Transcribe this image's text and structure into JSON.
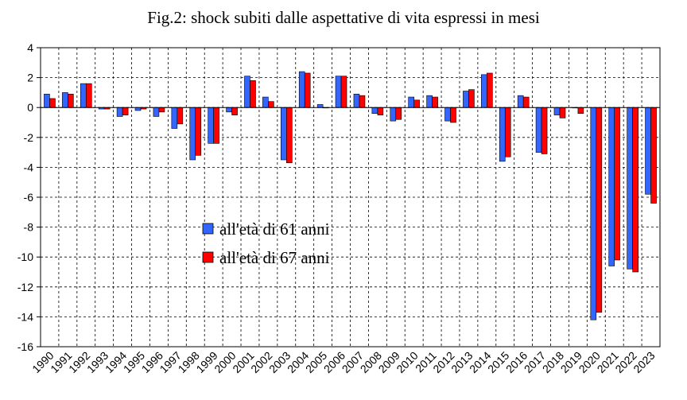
{
  "chart_data": {
    "type": "bar",
    "title": "Fig.2: shock subiti dalle aspettative di vita espressi in mesi",
    "xlabel": "",
    "ylabel": "",
    "ylim": [
      -16,
      4
    ],
    "yticks": [
      4,
      2,
      0,
      -2,
      -4,
      -6,
      -8,
      -10,
      -12,
      -14,
      -16
    ],
    "grid": true,
    "legend_position": "center-left",
    "categories": [
      "1990",
      "1991",
      "1992",
      "1993",
      "1994",
      "1995",
      "1996",
      "1997",
      "1998",
      "1999",
      "2000",
      "2001",
      "2002",
      "2003",
      "2004",
      "2005",
      "2006",
      "2007",
      "2008",
      "2009",
      "2010",
      "2011",
      "2012",
      "2013",
      "2014",
      "2015",
      "2016",
      "2017",
      "2018",
      "2019",
      "2020",
      "2021",
      "2022",
      "2023"
    ],
    "series": [
      {
        "name": "all'età di 61 anni",
        "color": "#3366ff",
        "values": [
          0.9,
          1.0,
          1.6,
          -0.1,
          -0.6,
          -0.2,
          -0.6,
          -1.4,
          -3.5,
          -2.4,
          -0.3,
          2.1,
          0.7,
          -3.5,
          2.4,
          0.2,
          2.1,
          0.9,
          -0.4,
          -0.9,
          0.7,
          0.8,
          -0.9,
          1.1,
          2.2,
          -3.6,
          0.8,
          -3.0,
          -0.5,
          0.0,
          -14.2,
          -10.6,
          -10.8,
          -5.8
        ]
      },
      {
        "name": "all'età di 67 anni",
        "color": "#ff0000",
        "values": [
          0.6,
          0.9,
          1.6,
          -0.1,
          -0.5,
          -0.1,
          -0.3,
          -1.1,
          -3.2,
          -2.4,
          -0.5,
          1.8,
          0.4,
          -3.7,
          2.3,
          0.0,
          2.1,
          0.8,
          -0.5,
          -0.8,
          0.5,
          0.7,
          -1.0,
          1.2,
          2.3,
          -3.3,
          0.7,
          -3.1,
          -0.7,
          -0.4,
          -13.7,
          -10.2,
          -11.0,
          -6.4
        ]
      }
    ]
  }
}
